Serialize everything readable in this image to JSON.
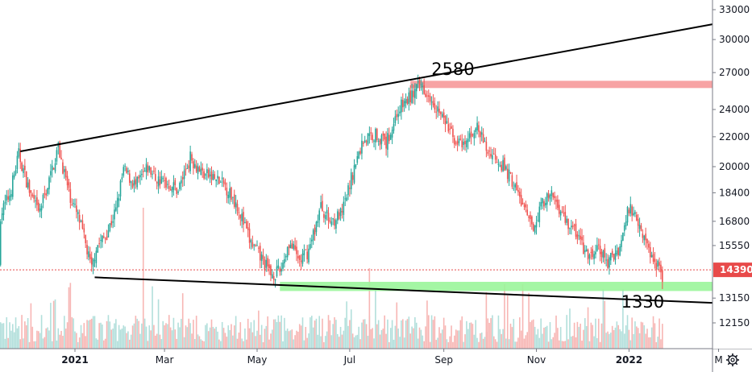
{
  "chart_data": {
    "type": "candlestick",
    "price_scale": "log",
    "grid": false,
    "colors": {
      "up": "#26a69a",
      "down": "#ef5350",
      "volume_up": "#b2dfdb",
      "volume_down": "#f7b6b4",
      "resistance_zone": "#f6999a",
      "support_zone": "#9af59a",
      "trendline": "#000000",
      "last_price": "#e84a4a"
    },
    "y_ticks": [
      "33000",
      "30000",
      "27000",
      "24000",
      "22000",
      "20000",
      "18400",
      "16800",
      "15550",
      "14390",
      "13150",
      "12150"
    ],
    "x_ticks": [
      {
        "label": "2021",
        "date": "2021-01-01",
        "bold": true
      },
      {
        "label": "Mar",
        "date": "2021-03-01",
        "bold": false
      },
      {
        "label": "May",
        "date": "2021-05-01",
        "bold": false
      },
      {
        "label": "Jul",
        "date": "2021-07-01",
        "bold": false
      },
      {
        "label": "Sep",
        "date": "2021-09-01",
        "bold": false
      },
      {
        "label": "Nov",
        "date": "2021-11-01",
        "bold": false
      },
      {
        "label": "2022",
        "date": "2022-01-01",
        "bold": true
      },
      {
        "label": "M",
        "date": "2022-03-01",
        "bold": false
      }
    ],
    "last_price": {
      "value": 14390,
      "label": "14390"
    },
    "annotations": [
      {
        "text": "2580",
        "date": "2021-09-07",
        "price": 26800
      },
      {
        "text": "1330",
        "date": "2022-01-10",
        "price": 12750
      }
    ],
    "zones": [
      {
        "name": "resistance",
        "from_date": "2021-08-10",
        "to_date": "2022-03-01",
        "low": 25700,
        "high": 26300
      },
      {
        "name": "support",
        "from_date": "2021-05-16",
        "to_date": "2022-03-01",
        "low": 13450,
        "high": 13850
      }
    ],
    "trendlines": [
      {
        "from": {
          "date": "2020-11-26",
          "price": 21000
        },
        "to": {
          "date": "2022-03-01",
          "price": 31500
        }
      },
      {
        "from": {
          "date": "2021-01-14",
          "price": 14050
        },
        "to": {
          "date": "2022-03-01",
          "price": 12950
        }
      }
    ],
    "price_path": [
      [
        "2020-10-25",
        14500
      ],
      [
        "2020-11-05",
        15800
      ],
      [
        "2020-11-12",
        17000
      ],
      [
        "2020-11-19",
        18300
      ],
      [
        "2020-11-25",
        20800
      ],
      [
        "2020-12-02",
        18500
      ],
      [
        "2020-12-08",
        17200
      ],
      [
        "2020-12-14",
        18800
      ],
      [
        "2020-12-21",
        21300
      ],
      [
        "2020-12-28",
        18400
      ],
      [
        "2021-01-04",
        16800
      ],
      [
        "2021-01-08",
        15600
      ],
      [
        "2021-01-12",
        14400
      ],
      [
        "2021-01-15",
        15500
      ],
      [
        "2021-01-21",
        16000
      ],
      [
        "2021-01-28",
        17400
      ],
      [
        "2021-02-02",
        19800
      ],
      [
        "2021-02-10",
        18800
      ],
      [
        "2021-02-18",
        19900
      ],
      [
        "2021-02-24",
        19200
      ],
      [
        "2021-03-02",
        19000
      ],
      [
        "2021-03-10",
        18600
      ],
      [
        "2021-03-18",
        20600
      ],
      [
        "2021-03-26",
        19600
      ],
      [
        "2021-04-02",
        19300
      ],
      [
        "2021-04-10",
        18800
      ],
      [
        "2021-04-18",
        17700
      ],
      [
        "2021-04-26",
        15800
      ],
      [
        "2021-05-04",
        14900
      ],
      [
        "2021-05-10",
        14200
      ],
      [
        "2021-05-16",
        14300
      ],
      [
        "2021-05-22",
        15700
      ],
      [
        "2021-05-29",
        14800
      ],
      [
        "2021-06-04",
        15300
      ],
      [
        "2021-06-12",
        17600
      ],
      [
        "2021-06-18",
        16800
      ],
      [
        "2021-06-26",
        17200
      ],
      [
        "2021-07-03",
        19600
      ],
      [
        "2021-07-10",
        21800
      ],
      [
        "2021-07-18",
        22200
      ],
      [
        "2021-07-25",
        21500
      ],
      [
        "2021-08-02",
        24000
      ],
      [
        "2021-08-10",
        25000
      ],
      [
        "2021-08-17",
        26000
      ],
      [
        "2021-08-24",
        25000
      ],
      [
        "2021-08-31",
        23400
      ],
      [
        "2021-09-07",
        22000
      ],
      [
        "2021-09-14",
        21200
      ],
      [
        "2021-09-22",
        22800
      ],
      [
        "2021-09-30",
        21000
      ],
      [
        "2021-10-07",
        20500
      ],
      [
        "2021-10-15",
        19300
      ],
      [
        "2021-10-22",
        17900
      ],
      [
        "2021-10-29",
        16400
      ],
      [
        "2021-11-05",
        17900
      ],
      [
        "2021-11-12",
        18200
      ],
      [
        "2021-11-20",
        16900
      ],
      [
        "2021-11-28",
        16100
      ],
      [
        "2021-12-05",
        14900
      ],
      [
        "2021-12-12",
        15400
      ],
      [
        "2021-12-18",
        14700
      ],
      [
        "2021-12-26",
        15500
      ],
      [
        "2022-01-01",
        17600
      ],
      [
        "2022-01-07",
        16900
      ],
      [
        "2022-01-14",
        15300
      ],
      [
        "2022-01-21",
        14500
      ],
      [
        "2022-01-27",
        13500
      ],
      [
        "2022-02-02",
        14390
      ]
    ]
  }
}
